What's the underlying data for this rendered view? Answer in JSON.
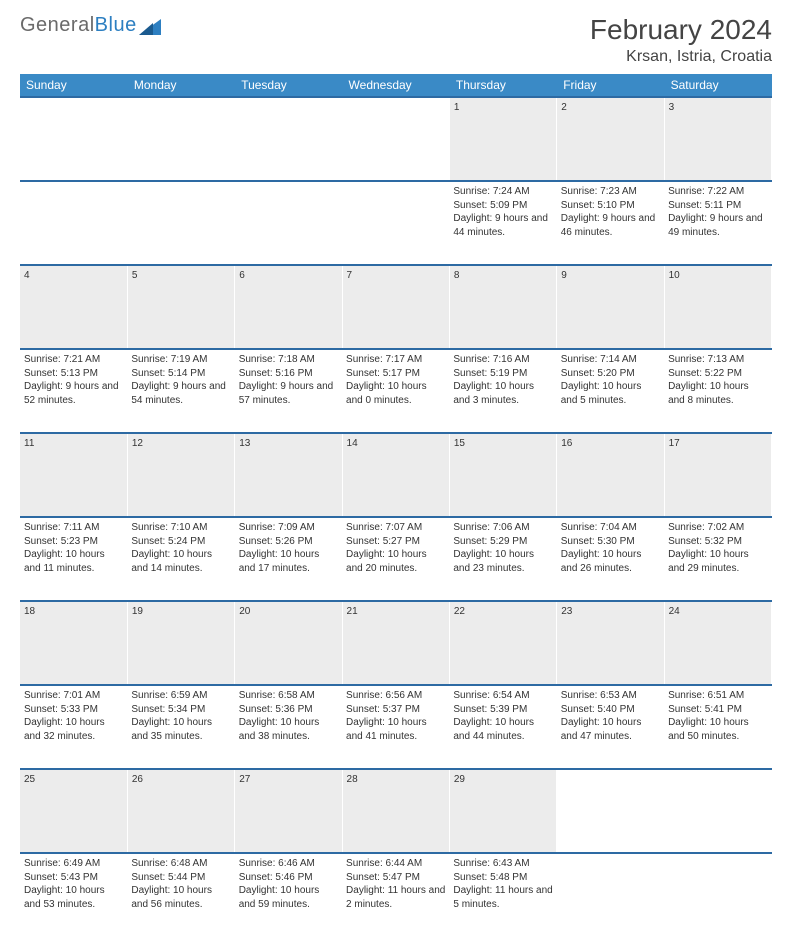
{
  "brand": {
    "part1": "General",
    "part2": "Blue"
  },
  "title": "February 2024",
  "location": "Krsan, Istria, Croatia",
  "colors": {
    "header_bg": "#3a8ac6",
    "row_border": "#2d6aa3",
    "daynum_bg": "#ececec",
    "brand_blue": "#2d7fc1",
    "text": "#333333",
    "page_bg": "#ffffff"
  },
  "dayNames": [
    "Sunday",
    "Monday",
    "Tuesday",
    "Wednesday",
    "Thursday",
    "Friday",
    "Saturday"
  ],
  "labels": {
    "sunrise": "Sunrise:",
    "sunset": "Sunset:",
    "daylight": "Daylight:"
  },
  "firstDayIndex": 4,
  "daysInMonth": 29,
  "days": {
    "1": {
      "sunrise": "7:24 AM",
      "sunset": "5:09 PM",
      "daylight": "9 hours and 44 minutes."
    },
    "2": {
      "sunrise": "7:23 AM",
      "sunset": "5:10 PM",
      "daylight": "9 hours and 46 minutes."
    },
    "3": {
      "sunrise": "7:22 AM",
      "sunset": "5:11 PM",
      "daylight": "9 hours and 49 minutes."
    },
    "4": {
      "sunrise": "7:21 AM",
      "sunset": "5:13 PM",
      "daylight": "9 hours and 52 minutes."
    },
    "5": {
      "sunrise": "7:19 AM",
      "sunset": "5:14 PM",
      "daylight": "9 hours and 54 minutes."
    },
    "6": {
      "sunrise": "7:18 AM",
      "sunset": "5:16 PM",
      "daylight": "9 hours and 57 minutes."
    },
    "7": {
      "sunrise": "7:17 AM",
      "sunset": "5:17 PM",
      "daylight": "10 hours and 0 minutes."
    },
    "8": {
      "sunrise": "7:16 AM",
      "sunset": "5:19 PM",
      "daylight": "10 hours and 3 minutes."
    },
    "9": {
      "sunrise": "7:14 AM",
      "sunset": "5:20 PM",
      "daylight": "10 hours and 5 minutes."
    },
    "10": {
      "sunrise": "7:13 AM",
      "sunset": "5:22 PM",
      "daylight": "10 hours and 8 minutes."
    },
    "11": {
      "sunrise": "7:11 AM",
      "sunset": "5:23 PM",
      "daylight": "10 hours and 11 minutes."
    },
    "12": {
      "sunrise": "7:10 AM",
      "sunset": "5:24 PM",
      "daylight": "10 hours and 14 minutes."
    },
    "13": {
      "sunrise": "7:09 AM",
      "sunset": "5:26 PM",
      "daylight": "10 hours and 17 minutes."
    },
    "14": {
      "sunrise": "7:07 AM",
      "sunset": "5:27 PM",
      "daylight": "10 hours and 20 minutes."
    },
    "15": {
      "sunrise": "7:06 AM",
      "sunset": "5:29 PM",
      "daylight": "10 hours and 23 minutes."
    },
    "16": {
      "sunrise": "7:04 AM",
      "sunset": "5:30 PM",
      "daylight": "10 hours and 26 minutes."
    },
    "17": {
      "sunrise": "7:02 AM",
      "sunset": "5:32 PM",
      "daylight": "10 hours and 29 minutes."
    },
    "18": {
      "sunrise": "7:01 AM",
      "sunset": "5:33 PM",
      "daylight": "10 hours and 32 minutes."
    },
    "19": {
      "sunrise": "6:59 AM",
      "sunset": "5:34 PM",
      "daylight": "10 hours and 35 minutes."
    },
    "20": {
      "sunrise": "6:58 AM",
      "sunset": "5:36 PM",
      "daylight": "10 hours and 38 minutes."
    },
    "21": {
      "sunrise": "6:56 AM",
      "sunset": "5:37 PM",
      "daylight": "10 hours and 41 minutes."
    },
    "22": {
      "sunrise": "6:54 AM",
      "sunset": "5:39 PM",
      "daylight": "10 hours and 44 minutes."
    },
    "23": {
      "sunrise": "6:53 AM",
      "sunset": "5:40 PM",
      "daylight": "10 hours and 47 minutes."
    },
    "24": {
      "sunrise": "6:51 AM",
      "sunset": "5:41 PM",
      "daylight": "10 hours and 50 minutes."
    },
    "25": {
      "sunrise": "6:49 AM",
      "sunset": "5:43 PM",
      "daylight": "10 hours and 53 minutes."
    },
    "26": {
      "sunrise": "6:48 AM",
      "sunset": "5:44 PM",
      "daylight": "10 hours and 56 minutes."
    },
    "27": {
      "sunrise": "6:46 AM",
      "sunset": "5:46 PM",
      "daylight": "10 hours and 59 minutes."
    },
    "28": {
      "sunrise": "6:44 AM",
      "sunset": "5:47 PM",
      "daylight": "11 hours and 2 minutes."
    },
    "29": {
      "sunrise": "6:43 AM",
      "sunset": "5:48 PM",
      "daylight": "11 hours and 5 minutes."
    }
  }
}
